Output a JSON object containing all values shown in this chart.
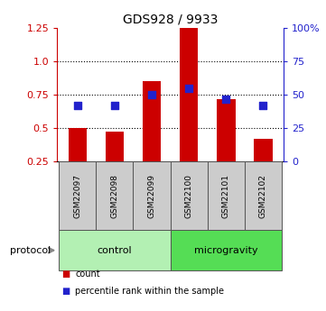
{
  "title": "GDS928 / 9933",
  "samples": [
    "GSM22097",
    "GSM22098",
    "GSM22099",
    "GSM22100",
    "GSM22101",
    "GSM22102"
  ],
  "bar_values": [
    0.505,
    0.475,
    0.855,
    1.25,
    0.72,
    0.42
  ],
  "dot_values": [
    42,
    42,
    50,
    55,
    47,
    42
  ],
  "ylim_left": [
    0.25,
    1.25
  ],
  "ylim_right": [
    0,
    100
  ],
  "yticks_left": [
    0.25,
    0.5,
    0.75,
    1.0,
    1.25
  ],
  "yticks_right": [
    0,
    25,
    50,
    75,
    100
  ],
  "yticklabels_right": [
    "0",
    "25",
    "50",
    "75",
    "100%"
  ],
  "bar_color": "#cc0000",
  "dot_color": "#2222cc",
  "bar_bottom": 0.25,
  "groups": [
    {
      "label": "control",
      "indices": [
        0,
        1,
        2
      ],
      "color": "#b3f0b3"
    },
    {
      "label": "microgravity",
      "indices": [
        3,
        4,
        5
      ],
      "color": "#55dd55"
    }
  ],
  "protocol_label": "protocol",
  "legend_count_label": "count",
  "legend_pct_label": "percentile rank within the sample",
  "dotted_yticks": [
    0.5,
    0.75,
    1.0
  ],
  "sample_box_color": "#cccccc",
  "figsize": [
    3.61,
    3.45
  ],
  "dpi": 100
}
